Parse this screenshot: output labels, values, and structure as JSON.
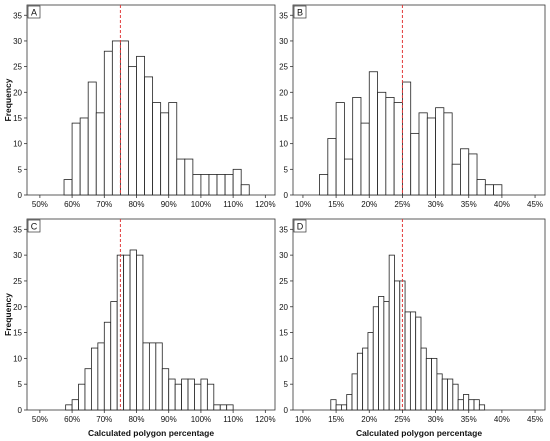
{
  "chart_data": [
    {
      "panel_label": "A",
      "type": "bar",
      "x_tick_labels": [
        "50%",
        "60%",
        "70%",
        "80%",
        "90%",
        "100%",
        "110%",
        "120%"
      ],
      "x_ticks": [
        50,
        60,
        70,
        80,
        90,
        100,
        110,
        120
      ],
      "xlim": [
        46,
        123
      ],
      "bin_width": 2.5,
      "bin_starts": [
        57.5,
        60,
        62.5,
        65,
        67.5,
        70,
        72.5,
        75,
        77.5,
        80,
        82.5,
        85,
        87.5,
        90,
        92.5,
        95,
        97.5,
        100,
        102.5,
        105,
        107.5,
        110,
        112.5
      ],
      "values": [
        3,
        14,
        15,
        22,
        16,
        28,
        30,
        30,
        25,
        27,
        23,
        18,
        16,
        18,
        7,
        7,
        4,
        4,
        4,
        4,
        4,
        5,
        2
      ],
      "ylim": [
        0,
        37
      ],
      "y_ticks": [
        0,
        5,
        10,
        15,
        20,
        25,
        30,
        35
      ],
      "ylabel": "Frequency",
      "xlabel": "",
      "reference_line": 75
    },
    {
      "panel_label": "B",
      "type": "bar",
      "x_tick_labels": [
        "10%",
        "15%",
        "20%",
        "25%",
        "30%",
        "35%",
        "40%",
        "45%"
      ],
      "x_ticks": [
        10,
        15,
        20,
        25,
        30,
        35,
        40,
        45
      ],
      "xlim": [
        8.5,
        46.5
      ],
      "bin_width": 1.25,
      "bin_starts": [
        12.5,
        13.75,
        15,
        16.25,
        17.5,
        18.75,
        20,
        21.25,
        22.5,
        23.75,
        25,
        26.25,
        27.5,
        28.75,
        30,
        31.25,
        32.5,
        33.75,
        35,
        36.25,
        37.5,
        38.75,
        40,
        41.25
      ],
      "values": [
        4,
        11,
        18,
        7,
        19,
        14,
        24,
        20,
        19,
        18,
        22,
        12,
        16,
        15,
        17,
        16,
        6,
        9,
        8,
        3,
        2,
        2,
        0,
        0
      ],
      "ylim": [
        0,
        37
      ],
      "y_ticks": [
        0,
        5,
        10,
        15,
        20,
        25,
        30,
        35
      ],
      "ylabel": "",
      "xlabel": "",
      "reference_line": 25
    },
    {
      "panel_label": "C",
      "type": "bar",
      "x_tick_labels": [
        "50%",
        "60%",
        "70%",
        "80%",
        "90%",
        "100%",
        "110%",
        "120%"
      ],
      "x_ticks": [
        50,
        60,
        70,
        80,
        90,
        100,
        110,
        120
      ],
      "xlim": [
        46,
        123
      ],
      "bin_width": 2,
      "bin_starts": [
        58,
        60,
        62,
        64,
        66,
        68,
        70,
        72,
        74,
        76,
        78,
        80,
        82,
        84,
        86,
        88,
        90,
        92,
        94,
        96,
        98,
        100,
        102,
        104,
        106,
        108,
        110
      ],
      "values": [
        1,
        2,
        5,
        8,
        12,
        13,
        17,
        21,
        30,
        30,
        31,
        30,
        13,
        13,
        13,
        8,
        6,
        5,
        6,
        6,
        5,
        6,
        5,
        1,
        1,
        1,
        0
      ],
      "ylim": [
        0,
        37
      ],
      "y_ticks": [
        0,
        5,
        10,
        15,
        20,
        25,
        30,
        35
      ],
      "ylabel": "Frequency",
      "xlabel": "Calculated polygon percentage",
      "reference_line": 75
    },
    {
      "panel_label": "D",
      "type": "bar",
      "x_tick_labels": [
        "10%",
        "15%",
        "20%",
        "25%",
        "30%",
        "35%",
        "40%",
        "45%"
      ],
      "x_ticks": [
        10,
        15,
        20,
        25,
        30,
        35,
        40,
        45
      ],
      "xlim": [
        8.5,
        46.5
      ],
      "bin_width": 0.8,
      "bin_starts": [
        14.2,
        15,
        15.8,
        16.6,
        17.4,
        18.2,
        19,
        19.8,
        20.6,
        21.4,
        22.2,
        23,
        23.8,
        24.6,
        25.4,
        26.2,
        27,
        27.8,
        28.6,
        29.4,
        30.2,
        31,
        31.8,
        32.6,
        33.4,
        34.2,
        35,
        35.8,
        36.6,
        37.4,
        38.2,
        39,
        39.8
      ],
      "values": [
        2,
        1,
        1,
        3,
        7,
        11,
        12,
        15,
        20,
        22,
        21,
        30,
        25,
        25,
        19,
        19,
        18,
        12,
        10,
        10,
        7,
        6,
        6,
        5,
        2,
        3,
        2,
        2,
        1,
        0,
        0,
        0,
        0
      ],
      "ylim": [
        0,
        37
      ],
      "y_ticks": [
        0,
        5,
        10,
        15,
        20,
        25,
        30,
        35
      ],
      "ylabel": "",
      "xlabel": "Calculated polygon percentage",
      "reference_line": 25
    }
  ]
}
